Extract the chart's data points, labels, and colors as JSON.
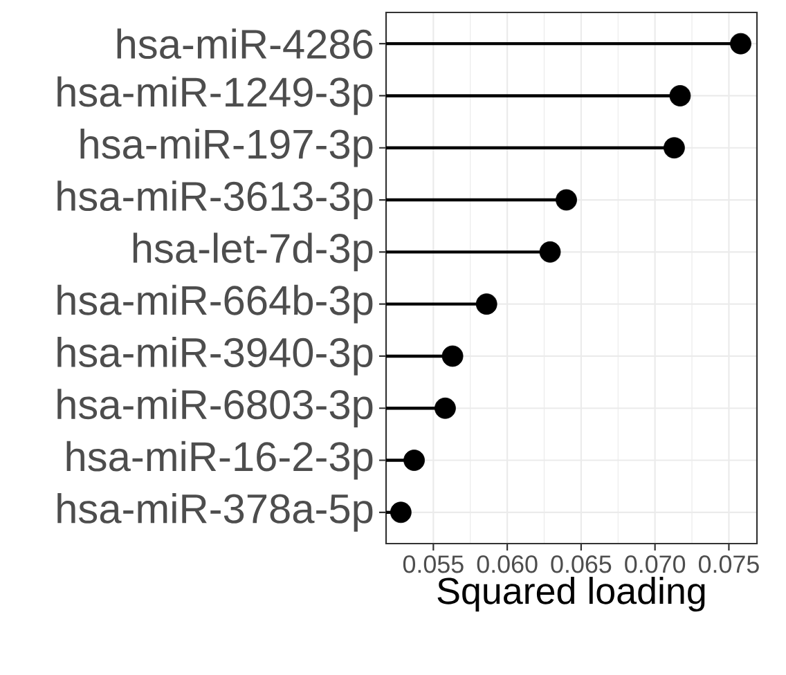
{
  "chart_data": {
    "type": "lollipop",
    "orientation": "horizontal",
    "xlabel": "Squared loading",
    "categories": [
      "hsa-miR-4286",
      "hsa-miR-1249-3p",
      "hsa-miR-197-3p",
      "hsa-miR-3613-3p",
      "hsa-let-7d-3p",
      "hsa-miR-664b-3p",
      "hsa-miR-3940-3p",
      "hsa-miR-6803-3p",
      "hsa-miR-16-2-3p",
      "hsa-miR-378a-5p"
    ],
    "values": [
      0.0758,
      0.0717,
      0.0713,
      0.064,
      0.0629,
      0.0586,
      0.0563,
      0.0558,
      0.0537,
      0.0528
    ],
    "color": "#000000",
    "marker": "circle",
    "grid": true,
    "xlim": [
      0.0518,
      0.0769
    ],
    "xticks": [
      0.055,
      {
        "value": 0.06,
        "label": "0.060"
      },
      0.065,
      {
        "value": 0.07,
        "label": "0.070"
      },
      0.075
    ]
  }
}
